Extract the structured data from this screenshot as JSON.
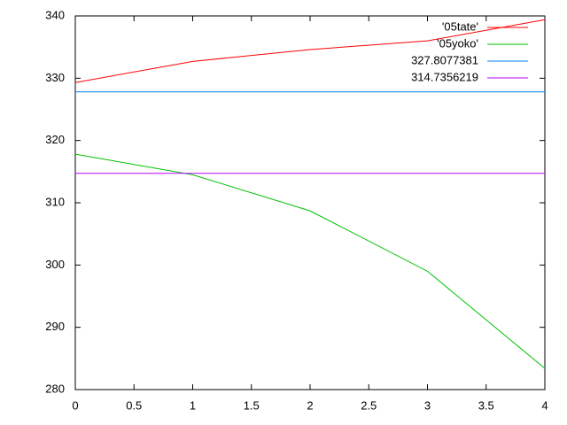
{
  "chart_data": {
    "type": "line",
    "xlim": [
      0,
      4
    ],
    "xticks": [
      0,
      0.5,
      1,
      1.5,
      2,
      2.5,
      3,
      3.5,
      4
    ],
    "ylim": [
      280,
      340
    ],
    "yticks": [
      280,
      290,
      300,
      310,
      320,
      330,
      340
    ],
    "grid": false,
    "legend": "top-right",
    "series": [
      {
        "name": "'05tate'",
        "color": "#ff0000",
        "x": [
          0,
          1,
          2,
          3,
          4
        ],
        "values": [
          329.3,
          332.7,
          334.6,
          336.0,
          339.4
        ]
      },
      {
        "name": "'05yoko'",
        "color": "#00c000",
        "x": [
          0,
          1,
          2,
          3,
          4
        ],
        "values": [
          317.8,
          314.5,
          308.7,
          299.0,
          283.4
        ]
      },
      {
        "name": "327.8077381",
        "color": "#0080ff",
        "x": [
          0,
          4
        ],
        "values": [
          327.8077381,
          327.8077381
        ]
      },
      {
        "name": "314.7356219",
        "color": "#c000ff",
        "x": [
          0,
          4
        ],
        "values": [
          314.7356219,
          314.7356219
        ]
      }
    ]
  }
}
